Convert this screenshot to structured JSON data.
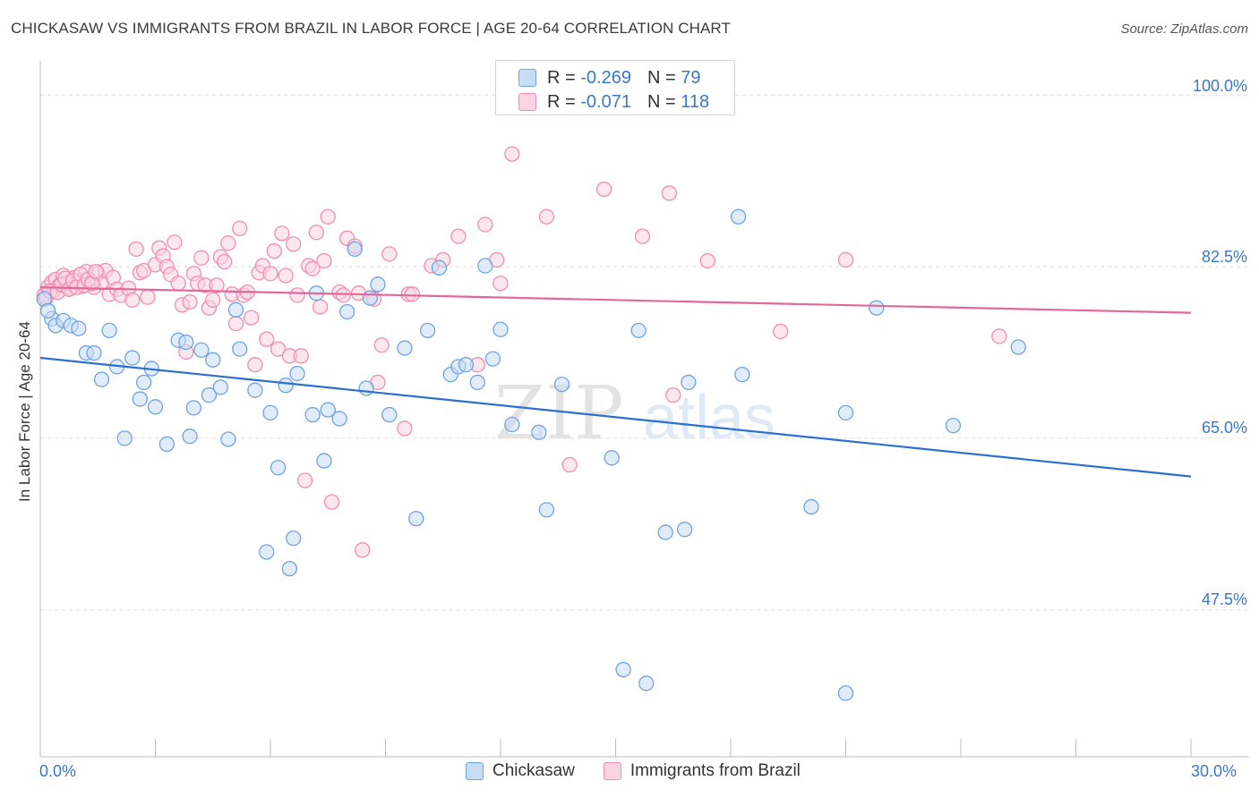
{
  "title": "CHICKASAW VS IMMIGRANTS FROM BRAZIL IN LABOR FORCE | AGE 20-64 CORRELATION CHART",
  "source": "Source: ZipAtlas.com",
  "legend_top": [
    {
      "r_label": "R =",
      "r_value": "-0.269",
      "n_label": "N =",
      "n_value": "79"
    },
    {
      "r_label": "R =",
      "r_value": "-0.071",
      "n_label": "N =",
      "n_value": "118"
    }
  ],
  "watermark": {
    "zip": "ZIP",
    "atlas": "atlas"
  },
  "colors": {
    "blue": "#6fa3e0",
    "blue_fill": "#c7dcf5",
    "blue_line": "#2b6fd1",
    "pink": "#f08db0",
    "pink_fill": "#fbd3e1",
    "pink_line": "#e3689a",
    "tick_text": "#3a76c9",
    "grid": "#dddddd"
  },
  "chart_data": {
    "type": "scatter",
    "title": "CHICKASAW VS IMMIGRANTS FROM BRAZIL IN LABOR FORCE | AGE 20-64 CORRELATION CHART",
    "xlabel": "",
    "ylabel": "In Labor Force | Age 20-64",
    "x_ticks": [
      "0.0%",
      "30.0%"
    ],
    "y_ticks": [
      "100.0%",
      "82.5%",
      "65.0%",
      "47.5%"
    ],
    "y_tick_values": [
      100.0,
      82.5,
      65.0,
      47.5
    ],
    "xlim": [
      0,
      30
    ],
    "ylim": [
      32.5,
      103.5
    ],
    "grid": true,
    "legend_position": "bottom",
    "series": [
      {
        "name": "Chickasaw",
        "stats": {
          "R": -0.269,
          "N": 79
        },
        "trend": {
          "x": [
            0,
            30
          ],
          "y": [
            73.2,
            61.1
          ]
        },
        "points": [
          [
            0.1,
            79.2
          ],
          [
            0.3,
            77.2
          ],
          [
            0.4,
            76.5
          ],
          [
            0.6,
            77.0
          ],
          [
            0.8,
            76.5
          ],
          [
            1.0,
            76.2
          ],
          [
            1.2,
            73.7
          ],
          [
            1.4,
            73.7
          ],
          [
            1.6,
            71.0
          ],
          [
            1.8,
            76.0
          ],
          [
            2.0,
            72.3
          ],
          [
            2.2,
            65.0
          ],
          [
            2.4,
            73.2
          ],
          [
            2.6,
            69.0
          ],
          [
            2.7,
            70.7
          ],
          [
            2.9,
            72.1
          ],
          [
            3.0,
            68.2
          ],
          [
            3.3,
            64.4
          ],
          [
            3.6,
            75.0
          ],
          [
            3.8,
            74.8
          ],
          [
            3.9,
            65.2
          ],
          [
            4.0,
            68.1
          ],
          [
            4.2,
            74.0
          ],
          [
            4.4,
            69.4
          ],
          [
            4.5,
            73.0
          ],
          [
            4.7,
            70.2
          ],
          [
            4.9,
            64.9
          ],
          [
            5.1,
            78.1
          ],
          [
            5.2,
            74.1
          ],
          [
            5.6,
            69.9
          ],
          [
            5.9,
            53.4
          ],
          [
            6.0,
            67.6
          ],
          [
            6.2,
            62.0
          ],
          [
            6.4,
            70.4
          ],
          [
            6.5,
            51.7
          ],
          [
            6.6,
            54.8
          ],
          [
            6.7,
            71.6
          ],
          [
            7.1,
            67.4
          ],
          [
            7.2,
            79.8
          ],
          [
            7.4,
            62.7
          ],
          [
            7.5,
            67.9
          ],
          [
            7.8,
            67.0
          ],
          [
            8.0,
            77.9
          ],
          [
            8.2,
            84.3
          ],
          [
            8.5,
            70.1
          ],
          [
            8.6,
            79.3
          ],
          [
            8.8,
            80.7
          ],
          [
            9.1,
            67.4
          ],
          [
            9.5,
            74.2
          ],
          [
            9.8,
            56.8
          ],
          [
            10.1,
            76.0
          ],
          [
            10.4,
            82.4
          ],
          [
            10.7,
            71.5
          ],
          [
            10.9,
            72.3
          ],
          [
            11.1,
            72.5
          ],
          [
            11.4,
            70.7
          ],
          [
            11.6,
            82.6
          ],
          [
            11.8,
            73.1
          ],
          [
            12.0,
            76.1
          ],
          [
            12.3,
            66.4
          ],
          [
            13.0,
            65.6
          ],
          [
            13.2,
            57.7
          ],
          [
            13.6,
            70.5
          ],
          [
            14.9,
            63.0
          ],
          [
            15.2,
            41.4
          ],
          [
            15.6,
            76.0
          ],
          [
            15.8,
            40.0
          ],
          [
            16.3,
            55.4
          ],
          [
            16.8,
            55.7
          ],
          [
            16.9,
            70.7
          ],
          [
            18.3,
            71.5
          ],
          [
            18.2,
            87.6
          ],
          [
            20.1,
            58.0
          ],
          [
            21.0,
            67.6
          ],
          [
            21.0,
            39.0
          ],
          [
            21.8,
            78.3
          ],
          [
            23.8,
            66.3
          ],
          [
            25.5,
            74.3
          ],
          [
            0.2,
            78.0
          ]
        ]
      },
      {
        "name": "Immigrants from Brazil",
        "stats": {
          "R": -0.071,
          "N": 118
        },
        "trend": {
          "x": [
            0,
            30
          ],
          "y": [
            80.4,
            77.8
          ]
        },
        "points": [
          [
            0.1,
            79.6
          ],
          [
            0.2,
            80.4
          ],
          [
            0.3,
            80.9
          ],
          [
            0.35,
            80.1
          ],
          [
            0.4,
            81.2
          ],
          [
            0.5,
            80.6
          ],
          [
            0.6,
            81.6
          ],
          [
            0.7,
            80.8
          ],
          [
            0.8,
            80.3
          ],
          [
            0.9,
            81.4
          ],
          [
            1.0,
            81.0
          ],
          [
            1.1,
            80.5
          ],
          [
            1.2,
            82.0
          ],
          [
            1.3,
            80.9
          ],
          [
            1.4,
            80.4
          ],
          [
            1.5,
            81.8
          ],
          [
            1.6,
            80.9
          ],
          [
            1.7,
            82.1
          ],
          [
            1.8,
            79.7
          ],
          [
            1.9,
            81.4
          ],
          [
            2.0,
            80.2
          ],
          [
            2.1,
            79.6
          ],
          [
            2.3,
            80.3
          ],
          [
            2.4,
            79.1
          ],
          [
            2.5,
            84.3
          ],
          [
            2.6,
            81.9
          ],
          [
            2.7,
            82.1
          ],
          [
            2.8,
            79.4
          ],
          [
            3.0,
            82.7
          ],
          [
            3.1,
            84.4
          ],
          [
            3.2,
            83.6
          ],
          [
            3.3,
            82.5
          ],
          [
            3.4,
            81.7
          ],
          [
            3.5,
            85.0
          ],
          [
            3.6,
            80.8
          ],
          [
            3.7,
            78.6
          ],
          [
            3.8,
            73.8
          ],
          [
            3.9,
            78.9
          ],
          [
            4.0,
            81.8
          ],
          [
            4.1,
            80.8
          ],
          [
            4.2,
            83.4
          ],
          [
            4.3,
            80.6
          ],
          [
            4.4,
            78.3
          ],
          [
            4.5,
            79.1
          ],
          [
            4.6,
            80.6
          ],
          [
            4.7,
            83.5
          ],
          [
            4.8,
            83.0
          ],
          [
            4.9,
            84.9
          ],
          [
            5.0,
            79.7
          ],
          [
            5.1,
            76.7
          ],
          [
            5.2,
            86.4
          ],
          [
            5.3,
            79.6
          ],
          [
            5.4,
            79.9
          ],
          [
            5.5,
            77.3
          ],
          [
            5.6,
            72.5
          ],
          [
            5.7,
            81.9
          ],
          [
            5.8,
            82.6
          ],
          [
            5.9,
            75.1
          ],
          [
            6.0,
            81.8
          ],
          [
            6.1,
            84.1
          ],
          [
            6.2,
            74.1
          ],
          [
            6.3,
            85.9
          ],
          [
            6.4,
            81.6
          ],
          [
            6.5,
            73.4
          ],
          [
            6.6,
            84.8
          ],
          [
            6.7,
            79.6
          ],
          [
            6.8,
            73.4
          ],
          [
            6.9,
            60.7
          ],
          [
            7.0,
            82.6
          ],
          [
            7.1,
            82.3
          ],
          [
            7.2,
            86.0
          ],
          [
            7.3,
            78.4
          ],
          [
            7.4,
            83.1
          ],
          [
            7.5,
            87.6
          ],
          [
            7.6,
            58.5
          ],
          [
            7.8,
            79.9
          ],
          [
            7.9,
            79.6
          ],
          [
            8.0,
            85.4
          ],
          [
            8.2,
            84.6
          ],
          [
            8.3,
            79.8
          ],
          [
            8.4,
            53.6
          ],
          [
            8.7,
            79.2
          ],
          [
            8.8,
            70.7
          ],
          [
            8.9,
            74.5
          ],
          [
            9.1,
            83.8
          ],
          [
            9.5,
            66.0
          ],
          [
            9.6,
            79.7
          ],
          [
            9.7,
            79.7
          ],
          [
            10.2,
            82.6
          ],
          [
            10.5,
            83.2
          ],
          [
            10.9,
            85.6
          ],
          [
            11.4,
            72.5
          ],
          [
            11.6,
            86.8
          ],
          [
            11.9,
            83.2
          ],
          [
            12.0,
            80.8
          ],
          [
            12.3,
            94.0
          ],
          [
            13.2,
            87.6
          ],
          [
            13.8,
            62.3
          ],
          [
            14.7,
            90.4
          ],
          [
            15.7,
            85.6
          ],
          [
            16.5,
            69.4
          ],
          [
            16.4,
            90.0
          ],
          [
            17.4,
            83.1
          ],
          [
            19.3,
            75.9
          ],
          [
            21.0,
            83.2
          ],
          [
            25.0,
            75.4
          ],
          [
            0.15,
            79.3
          ],
          [
            0.25,
            80.0
          ],
          [
            0.45,
            79.9
          ],
          [
            0.55,
            80.7
          ],
          [
            0.65,
            81.3
          ],
          [
            0.75,
            80.2
          ],
          [
            0.85,
            81.1
          ],
          [
            0.95,
            80.4
          ],
          [
            1.05,
            81.7
          ],
          [
            1.15,
            80.6
          ],
          [
            1.25,
            81.2
          ],
          [
            1.35,
            80.8
          ],
          [
            1.45,
            82.0
          ]
        ]
      }
    ]
  },
  "bottom_legend": [
    "Chickasaw",
    "Immigrants from Brazil"
  ]
}
